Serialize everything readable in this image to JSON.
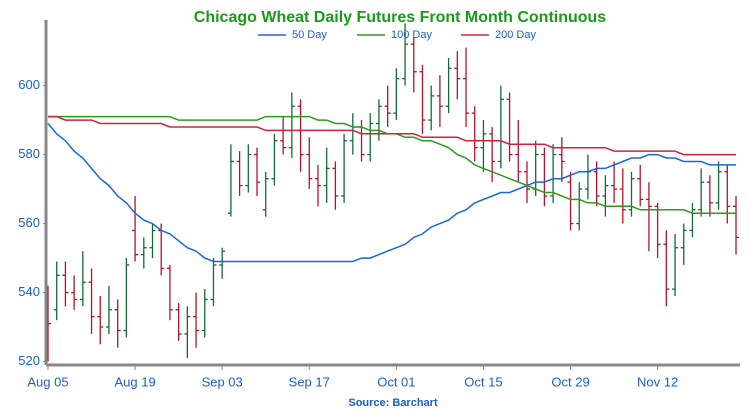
{
  "chart_data": {
    "type": "ohlc",
    "title": "Chicago Wheat Daily Futures Front Month Continuous",
    "source": "Source: Barchart",
    "categories": [
      "Aug 05",
      null,
      null,
      null,
      null,
      null,
      null,
      null,
      null,
      null,
      "Aug 19",
      null,
      null,
      null,
      null,
      null,
      null,
      null,
      null,
      null,
      "Sep 03",
      null,
      null,
      null,
      null,
      null,
      null,
      null,
      null,
      null,
      "Sep 17",
      null,
      null,
      null,
      null,
      null,
      null,
      null,
      null,
      null,
      "Oct 01",
      null,
      null,
      null,
      null,
      null,
      null,
      null,
      null,
      null,
      "Oct 15",
      null,
      null,
      null,
      null,
      null,
      null,
      null,
      null,
      null,
      "Oct 29",
      null,
      null,
      null,
      null,
      null,
      null,
      null,
      null,
      null,
      "Nov 12",
      null,
      null,
      null,
      null,
      null,
      null,
      null,
      null,
      null
    ],
    "open": [
      541,
      535,
      545,
      540,
      538,
      543,
      533,
      530,
      535,
      529,
      558,
      551,
      553,
      558,
      547,
      535,
      528,
      533,
      529,
      538,
      548,
      563,
      578,
      571,
      580,
      564,
      573,
      584,
      582,
      594,
      580,
      573,
      571,
      576,
      568,
      584,
      588,
      580,
      589,
      594,
      592,
      602,
      612,
      604,
      590,
      597,
      594,
      605,
      602,
      592,
      582,
      586,
      578,
      596,
      580,
      575,
      570,
      580,
      568,
      580,
      572,
      560,
      570,
      575,
      568,
      571,
      570,
      564,
      573,
      567,
      565,
      554,
      541,
      553,
      558,
      564,
      572,
      566,
      575,
      565
    ],
    "high": [
      542,
      549,
      549,
      545,
      552,
      547,
      539,
      542,
      538,
      550,
      568,
      556,
      560,
      560,
      548,
      537,
      536,
      540,
      541,
      550,
      553,
      583,
      581,
      583,
      582,
      575,
      586,
      591,
      598,
      596,
      585,
      577,
      582,
      578,
      586,
      592,
      590,
      592,
      596,
      600,
      605,
      618,
      614,
      606,
      600,
      603,
      608,
      610,
      611,
      594,
      590,
      588,
      600,
      598,
      590,
      578,
      584,
      582,
      583,
      585,
      575,
      572,
      580,
      578,
      574,
      578,
      576,
      575,
      577,
      572,
      566,
      558,
      557,
      560,
      566,
      576,
      574,
      578,
      577,
      568
    ],
    "low": [
      520,
      532,
      536,
      535,
      536,
      528,
      525,
      528,
      524,
      527,
      549,
      547,
      550,
      545,
      532,
      526,
      521,
      524,
      527,
      536,
      544,
      562,
      568,
      569,
      568,
      562,
      571,
      580,
      579,
      575,
      570,
      565,
      566,
      564,
      566,
      580,
      578,
      578,
      584,
      588,
      590,
      600,
      598,
      586,
      587,
      588,
      592,
      596,
      588,
      578,
      575,
      572,
      576,
      578,
      572,
      566,
      568,
      565,
      566,
      572,
      558,
      558,
      567,
      565,
      562,
      566,
      560,
      562,
      565,
      552,
      550,
      536,
      539,
      548,
      556,
      562,
      562,
      564,
      560,
      551
    ],
    "close": [
      531,
      545,
      540,
      538,
      543,
      533,
      530,
      535,
      529,
      548,
      551,
      553,
      558,
      547,
      535,
      528,
      533,
      529,
      538,
      548,
      552,
      578,
      571,
      580,
      572,
      573,
      584,
      582,
      594,
      580,
      573,
      571,
      576,
      568,
      584,
      588,
      580,
      589,
      594,
      592,
      602,
      612,
      604,
      590,
      597,
      594,
      605,
      602,
      592,
      582,
      586,
      578,
      596,
      580,
      575,
      570,
      580,
      568,
      580,
      578,
      560,
      570,
      575,
      568,
      571,
      570,
      564,
      573,
      567,
      565,
      554,
      541,
      553,
      558,
      564,
      572,
      566,
      575,
      565,
      556
    ],
    "up_color": "#13693a",
    "down_color": "#b3122e",
    "series": [
      {
        "name": "50 Day",
        "color": "#1a66d9",
        "values": [
          589,
          586,
          584,
          581,
          579,
          576,
          573,
          571,
          568,
          566,
          563,
          561,
          560,
          558,
          557,
          555,
          553,
          552,
          550,
          549,
          549,
          549,
          549,
          549,
          549,
          549,
          549,
          549,
          549,
          549,
          549,
          549,
          549,
          549,
          549,
          549,
          550,
          550,
          551,
          552,
          553,
          554,
          556,
          557,
          559,
          560,
          561,
          563,
          564,
          566,
          567,
          568,
          569,
          569,
          570,
          571,
          572,
          572,
          573,
          573,
          574,
          575,
          575,
          576,
          576,
          577,
          578,
          579,
          579,
          580,
          580,
          579,
          579,
          578,
          578,
          578,
          577,
          577,
          577,
          577
        ]
      },
      {
        "name": "100 Day",
        "color": "#2e9a1c",
        "values": [
          591,
          591,
          591,
          591,
          591,
          591,
          591,
          591,
          591,
          591,
          591,
          591,
          591,
          591,
          591,
          590,
          590,
          590,
          590,
          590,
          590,
          590,
          590,
          590,
          590,
          591,
          591,
          591,
          591,
          591,
          591,
          590,
          590,
          589,
          589,
          588,
          588,
          587,
          587,
          586,
          586,
          585,
          585,
          584,
          584,
          583,
          582,
          580,
          579,
          577,
          576,
          575,
          574,
          573,
          572,
          571,
          570,
          569,
          569,
          568,
          567,
          567,
          566,
          566,
          565,
          565,
          565,
          565,
          564,
          564,
          564,
          564,
          564,
          564,
          563,
          563,
          563,
          563,
          563,
          563
        ]
      },
      {
        "name": "200 Day",
        "color": "#d0223f",
        "values": [
          591,
          591,
          590,
          590,
          590,
          590,
          589,
          589,
          589,
          589,
          589,
          589,
          589,
          589,
          588,
          588,
          588,
          588,
          588,
          588,
          588,
          588,
          588,
          588,
          588,
          587,
          587,
          587,
          587,
          587,
          587,
          587,
          587,
          587,
          587,
          587,
          586,
          586,
          586,
          586,
          586,
          586,
          586,
          585,
          585,
          585,
          585,
          585,
          584,
          584,
          584,
          584,
          584,
          583,
          583,
          583,
          583,
          583,
          582,
          582,
          582,
          582,
          582,
          582,
          582,
          581,
          581,
          581,
          581,
          581,
          581,
          581,
          581,
          580,
          580,
          580,
          580,
          580,
          580,
          580
        ]
      }
    ],
    "ylim": [
      519,
      619
    ],
    "yticks": [
      520,
      540,
      560,
      580,
      600
    ],
    "legend": "top"
  }
}
